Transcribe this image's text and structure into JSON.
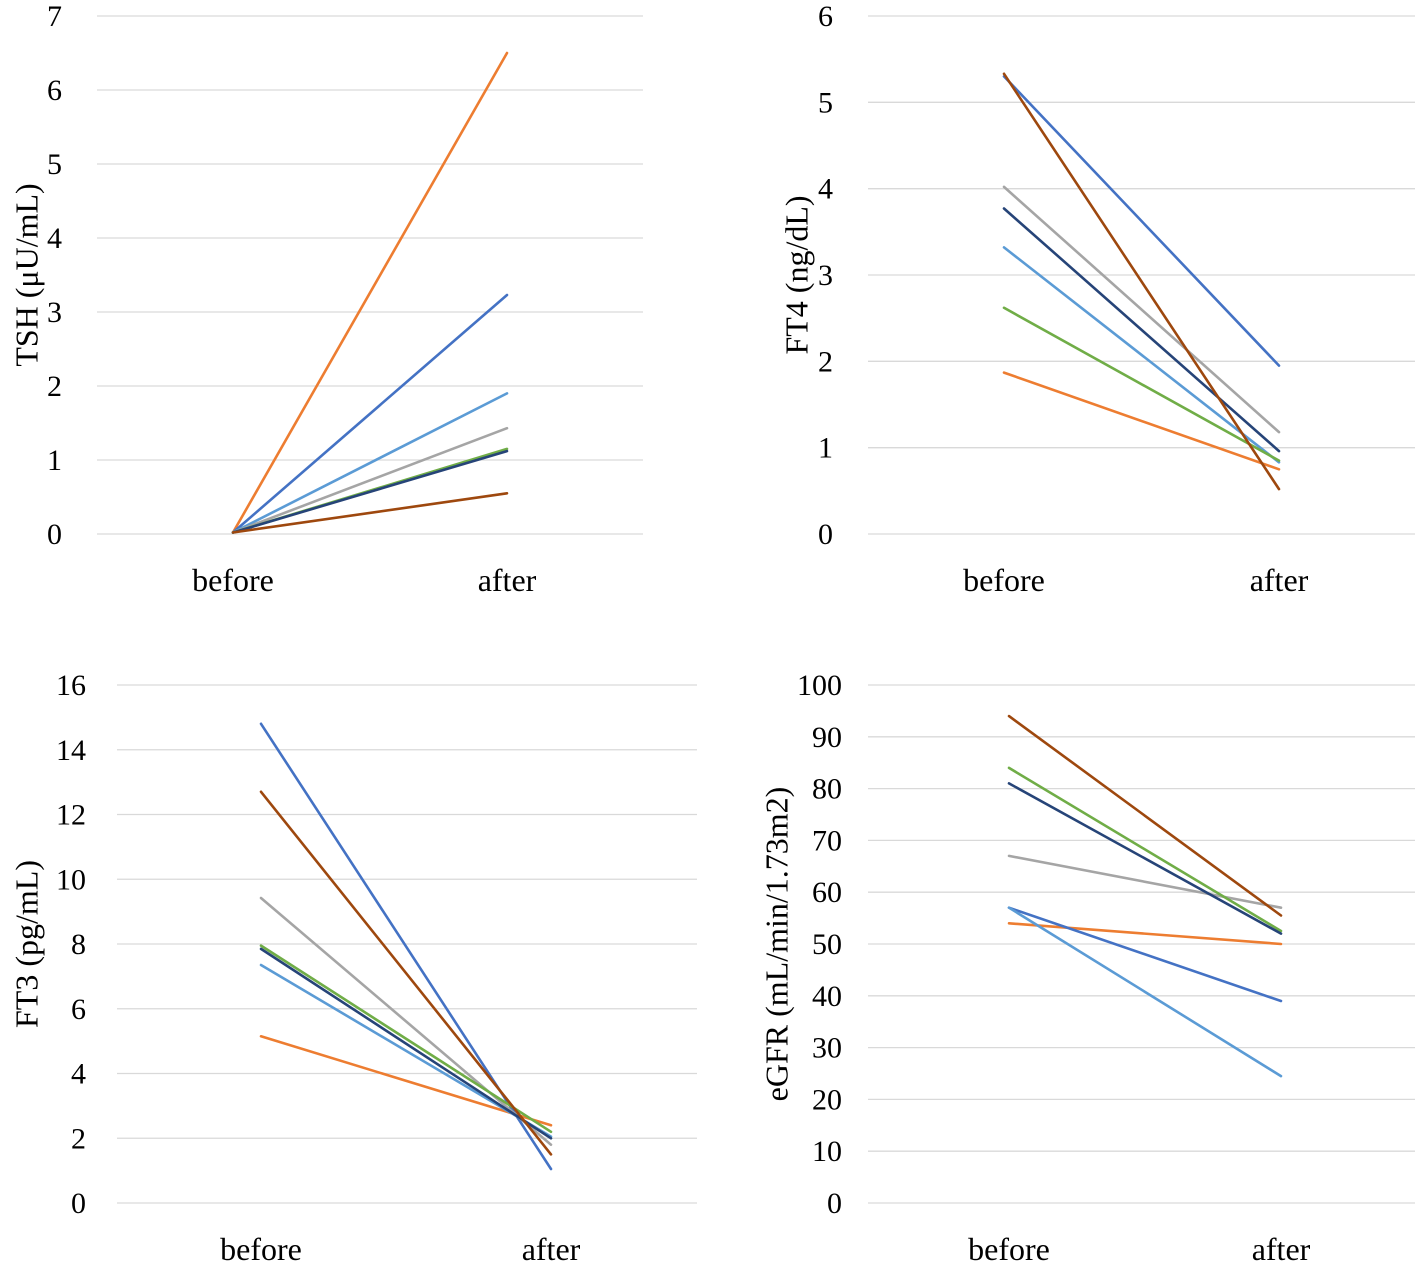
{
  "colors": {
    "gridline": "#d9d9d9",
    "text": "#000000",
    "series": {
      "orange": "#ed7d31",
      "blue": "#4472c4",
      "light_blue": "#5b9bd5",
      "gray": "#a5a5a5",
      "green": "#70ad47",
      "navy": "#264478",
      "dark_red": "#9e480e"
    }
  },
  "chart_data": [
    {
      "id": "tsh",
      "type": "line",
      "title": "",
      "xlabel": "",
      "ylabel": "TSH (μU/mL)",
      "categories": [
        "before",
        "after"
      ],
      "ylim": [
        0,
        7
      ],
      "yticks": [
        0,
        1,
        2,
        3,
        4,
        5,
        6,
        7
      ],
      "grid": true,
      "series": [
        {
          "name": "orange",
          "color": "#ed7d31",
          "values": [
            0.02,
            6.5
          ]
        },
        {
          "name": "blue",
          "color": "#4472c4",
          "values": [
            0.02,
            3.23
          ]
        },
        {
          "name": "light_blue",
          "color": "#5b9bd5",
          "values": [
            0.02,
            1.9
          ]
        },
        {
          "name": "gray",
          "color": "#a5a5a5",
          "values": [
            0.02,
            1.43
          ]
        },
        {
          "name": "green",
          "color": "#70ad47",
          "values": [
            0.02,
            1.15
          ]
        },
        {
          "name": "navy",
          "color": "#264478",
          "values": [
            0.02,
            1.12
          ]
        },
        {
          "name": "dark_red",
          "color": "#9e480e",
          "values": [
            0.02,
            0.55
          ]
        }
      ]
    },
    {
      "id": "ft4",
      "type": "line",
      "title": "",
      "xlabel": "",
      "ylabel": "FT4 (ng/dL)",
      "categories": [
        "before",
        "after"
      ],
      "ylim": [
        0,
        6
      ],
      "yticks": [
        0,
        1,
        2,
        3,
        4,
        5,
        6
      ],
      "grid": true,
      "series": [
        {
          "name": "orange",
          "color": "#ed7d31",
          "values": [
            1.87,
            0.75
          ]
        },
        {
          "name": "blue",
          "color": "#4472c4",
          "values": [
            5.3,
            1.95
          ]
        },
        {
          "name": "light_blue",
          "color": "#5b9bd5",
          "values": [
            3.32,
            0.83
          ]
        },
        {
          "name": "gray",
          "color": "#a5a5a5",
          "values": [
            4.02,
            1.18
          ]
        },
        {
          "name": "green",
          "color": "#70ad47",
          "values": [
            2.62,
            0.85
          ]
        },
        {
          "name": "navy",
          "color": "#264478",
          "values": [
            3.77,
            0.96
          ]
        },
        {
          "name": "dark_red",
          "color": "#9e480e",
          "values": [
            5.33,
            0.52
          ]
        }
      ]
    },
    {
      "id": "ft3",
      "type": "line",
      "title": "",
      "xlabel": "",
      "ylabel": "FT3 (pg/mL)",
      "categories": [
        "before",
        "after"
      ],
      "ylim": [
        0,
        16
      ],
      "yticks": [
        0,
        2,
        4,
        6,
        8,
        10,
        12,
        14,
        16
      ],
      "grid": true,
      "series": [
        {
          "name": "orange",
          "color": "#ed7d31",
          "values": [
            5.15,
            2.4
          ]
        },
        {
          "name": "blue",
          "color": "#4472c4",
          "values": [
            14.8,
            1.05
          ]
        },
        {
          "name": "light_blue",
          "color": "#5b9bd5",
          "values": [
            7.35,
            2.05
          ]
        },
        {
          "name": "gray",
          "color": "#a5a5a5",
          "values": [
            9.42,
            1.8
          ]
        },
        {
          "name": "green",
          "color": "#70ad47",
          "values": [
            7.95,
            2.2
          ]
        },
        {
          "name": "navy",
          "color": "#264478",
          "values": [
            7.85,
            2.0
          ]
        },
        {
          "name": "dark_red",
          "color": "#9e480e",
          "values": [
            12.7,
            1.5
          ]
        }
      ]
    },
    {
      "id": "egfr",
      "type": "line",
      "title": "",
      "xlabel": "",
      "ylabel": "eGFR (mL/min/1.73m2)",
      "categories": [
        "before",
        "after"
      ],
      "ylim": [
        0,
        100
      ],
      "yticks": [
        0,
        10,
        20,
        30,
        40,
        50,
        60,
        70,
        80,
        90,
        100
      ],
      "grid": true,
      "series": [
        {
          "name": "orange",
          "color": "#ed7d31",
          "values": [
            54,
            50
          ]
        },
        {
          "name": "blue",
          "color": "#4472c4",
          "values": [
            57,
            39
          ]
        },
        {
          "name": "light_blue",
          "color": "#5b9bd5",
          "values": [
            57,
            24.5
          ]
        },
        {
          "name": "gray",
          "color": "#a5a5a5",
          "values": [
            67,
            57
          ]
        },
        {
          "name": "green",
          "color": "#70ad47",
          "values": [
            84,
            52.5
          ]
        },
        {
          "name": "navy",
          "color": "#264478",
          "values": [
            81,
            52
          ]
        },
        {
          "name": "dark_red",
          "color": "#9e480e",
          "values": [
            94,
            55.5
          ]
        }
      ]
    }
  ]
}
